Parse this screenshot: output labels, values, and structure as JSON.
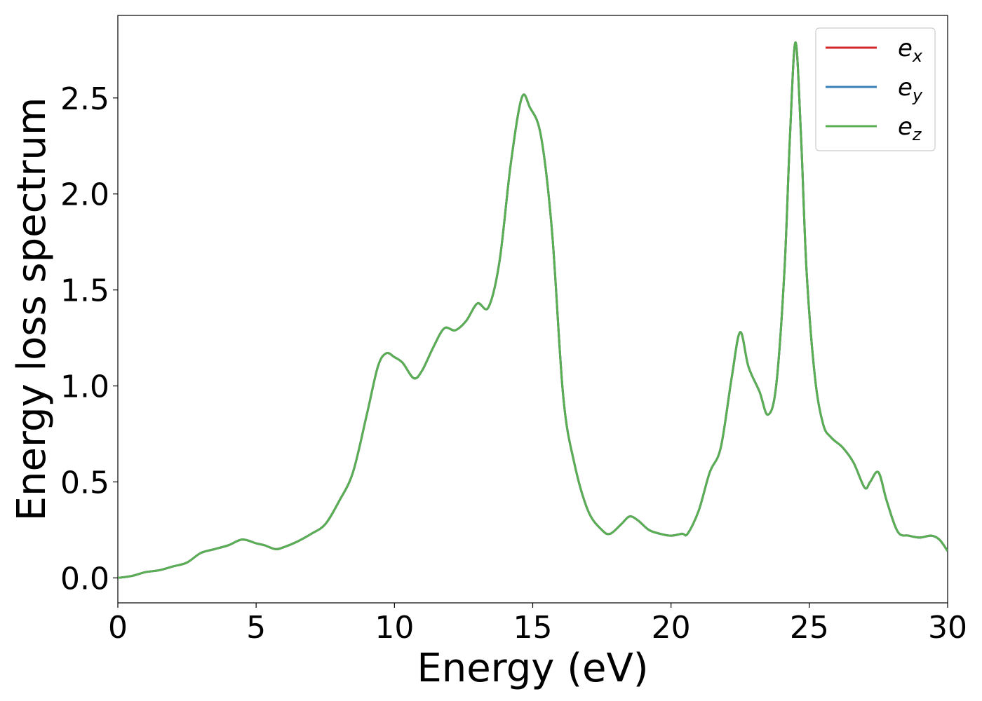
{
  "chart_data": {
    "type": "line",
    "title": "",
    "xlabel": "Energy (eV)",
    "ylabel": "Energy loss spectrum",
    "xlim": [
      0,
      30
    ],
    "ylim": [
      -0.13,
      2.93
    ],
    "xticks": [
      0,
      5,
      10,
      15,
      20,
      25,
      30
    ],
    "xtick_labels": [
      "0",
      "5",
      "10",
      "15",
      "20",
      "25",
      "30"
    ],
    "yticks": [
      0.0,
      0.5,
      1.0,
      1.5,
      2.0,
      2.5
    ],
    "ytick_labels": [
      "0.0",
      "0.5",
      "1.0",
      "1.5",
      "2.0",
      "2.5"
    ],
    "grid": false,
    "legend_position": "top-right",
    "x": [
      0,
      0.5,
      1,
      1.5,
      2,
      2.5,
      3,
      3.5,
      4,
      4.5,
      5,
      5.3,
      5.7,
      6,
      6.5,
      7,
      7.5,
      8,
      8.5,
      9,
      9.4,
      9.7,
      10,
      10.3,
      10.7,
      11,
      11.4,
      11.8,
      12.2,
      12.6,
      13,
      13.4,
      13.8,
      14.2,
      14.6,
      14.9,
      15.3,
      15.7,
      16.1,
      16.5,
      17,
      17.5,
      17.8,
      18.2,
      18.5,
      18.8,
      19.2,
      19.6,
      20,
      20.4,
      20.6,
      21,
      21.4,
      21.8,
      22.2,
      22.5,
      22.8,
      23.2,
      23.5,
      23.8,
      24.1,
      24.3,
      24.5,
      24.7,
      24.9,
      25.2,
      25.5,
      25.8,
      26.2,
      26.6,
      27,
      27.2,
      27.5,
      27.8,
      28.2,
      28.6,
      29,
      29.4,
      29.7,
      30
    ],
    "series": [
      {
        "name": "e_x",
        "legend_label": "e",
        "legend_sub": "x",
        "color": "#d62728",
        "values": [
          0.0,
          0.01,
          0.03,
          0.04,
          0.06,
          0.08,
          0.13,
          0.15,
          0.17,
          0.2,
          0.18,
          0.17,
          0.15,
          0.16,
          0.19,
          0.23,
          0.28,
          0.4,
          0.55,
          0.85,
          1.1,
          1.17,
          1.15,
          1.12,
          1.04,
          1.08,
          1.2,
          1.3,
          1.29,
          1.34,
          1.43,
          1.41,
          1.65,
          2.15,
          2.5,
          2.45,
          2.3,
          1.8,
          0.95,
          0.6,
          0.35,
          0.25,
          0.23,
          0.28,
          0.32,
          0.3,
          0.25,
          0.23,
          0.22,
          0.23,
          0.23,
          0.35,
          0.55,
          0.68,
          1.05,
          1.28,
          1.1,
          0.97,
          0.85,
          1.0,
          1.6,
          2.3,
          2.79,
          2.3,
          1.6,
          1.05,
          0.8,
          0.73,
          0.68,
          0.6,
          0.47,
          0.5,
          0.55,
          0.4,
          0.24,
          0.22,
          0.21,
          0.22,
          0.2,
          0.14
        ]
      },
      {
        "name": "e_y",
        "legend_label": "e",
        "legend_sub": "y",
        "color": "#3a7fb5",
        "values": [
          0.0,
          0.01,
          0.03,
          0.04,
          0.06,
          0.08,
          0.13,
          0.15,
          0.17,
          0.2,
          0.18,
          0.17,
          0.15,
          0.16,
          0.19,
          0.23,
          0.28,
          0.4,
          0.55,
          0.85,
          1.1,
          1.17,
          1.15,
          1.12,
          1.04,
          1.08,
          1.2,
          1.3,
          1.29,
          1.34,
          1.43,
          1.41,
          1.65,
          2.15,
          2.5,
          2.45,
          2.3,
          1.8,
          0.95,
          0.6,
          0.35,
          0.25,
          0.23,
          0.28,
          0.32,
          0.3,
          0.25,
          0.23,
          0.22,
          0.23,
          0.23,
          0.35,
          0.55,
          0.68,
          1.05,
          1.28,
          1.1,
          0.97,
          0.85,
          1.0,
          1.6,
          2.3,
          2.79,
          2.3,
          1.6,
          1.05,
          0.8,
          0.73,
          0.68,
          0.6,
          0.47,
          0.5,
          0.55,
          0.4,
          0.24,
          0.22,
          0.21,
          0.22,
          0.2,
          0.14
        ]
      },
      {
        "name": "e_z",
        "legend_label": "e",
        "legend_sub": "z",
        "color": "#5aaf55",
        "values": [
          0.0,
          0.01,
          0.03,
          0.04,
          0.06,
          0.08,
          0.13,
          0.15,
          0.17,
          0.2,
          0.18,
          0.17,
          0.15,
          0.16,
          0.19,
          0.23,
          0.28,
          0.4,
          0.55,
          0.85,
          1.1,
          1.17,
          1.15,
          1.12,
          1.04,
          1.08,
          1.2,
          1.3,
          1.29,
          1.34,
          1.43,
          1.41,
          1.65,
          2.15,
          2.5,
          2.45,
          2.3,
          1.8,
          0.95,
          0.6,
          0.35,
          0.25,
          0.23,
          0.28,
          0.32,
          0.3,
          0.25,
          0.23,
          0.22,
          0.23,
          0.23,
          0.35,
          0.55,
          0.68,
          1.05,
          1.28,
          1.1,
          0.97,
          0.85,
          1.0,
          1.6,
          2.3,
          2.79,
          2.3,
          1.6,
          1.05,
          0.8,
          0.73,
          0.68,
          0.6,
          0.47,
          0.5,
          0.55,
          0.4,
          0.24,
          0.22,
          0.21,
          0.22,
          0.2,
          0.14
        ]
      }
    ]
  }
}
